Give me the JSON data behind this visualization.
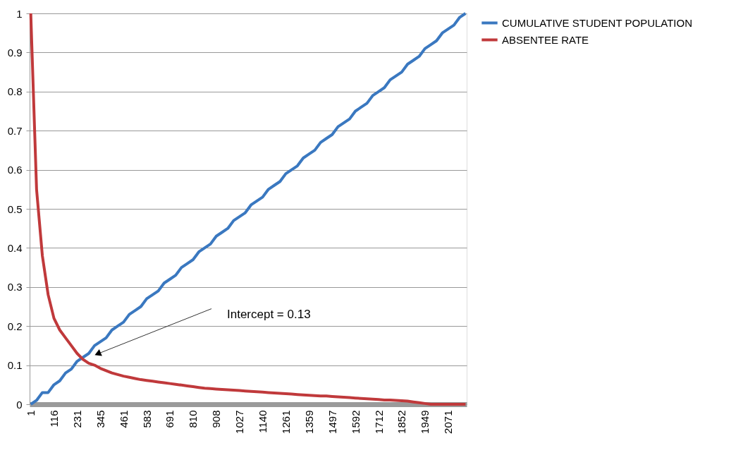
{
  "chart_data": {
    "type": "line",
    "categories": [
      "1",
      null,
      null,
      null,
      "116",
      null,
      null,
      null,
      "231",
      null,
      null,
      null,
      "345",
      null,
      null,
      null,
      "461",
      null,
      null,
      null,
      "583",
      null,
      null,
      null,
      "691",
      null,
      null,
      null,
      "810",
      null,
      null,
      null,
      "908",
      null,
      null,
      null,
      "1027",
      null,
      null,
      null,
      "1140",
      null,
      null,
      null,
      "1261",
      null,
      null,
      null,
      "1359",
      null,
      null,
      null,
      "1497",
      null,
      null,
      null,
      "1592",
      null,
      null,
      null,
      "1712",
      null,
      null,
      null,
      "1852",
      null,
      null,
      null,
      "1949",
      null,
      null,
      null,
      "2071",
      null,
      null,
      null
    ],
    "series": [
      {
        "name": "CUMULATIVE STUDENT POPULATION",
        "color": "#3a78c0",
        "values": [
          0,
          0.01,
          0.03,
          0.03,
          0.05,
          0.06,
          0.08,
          0.09,
          0.11,
          0.12,
          0.13,
          0.15,
          0.16,
          0.17,
          0.19,
          0.2,
          0.21,
          0.23,
          0.24,
          0.25,
          0.27,
          0.28,
          0.29,
          0.31,
          0.32,
          0.33,
          0.35,
          0.36,
          0.37,
          0.39,
          0.4,
          0.41,
          0.43,
          0.44,
          0.45,
          0.47,
          0.48,
          0.49,
          0.51,
          0.52,
          0.53,
          0.55,
          0.56,
          0.57,
          0.59,
          0.6,
          0.61,
          0.63,
          0.64,
          0.65,
          0.67,
          0.68,
          0.69,
          0.71,
          0.72,
          0.73,
          0.75,
          0.76,
          0.77,
          0.79,
          0.8,
          0.81,
          0.83,
          0.84,
          0.85,
          0.87,
          0.88,
          0.89,
          0.91,
          0.92,
          0.93,
          0.95,
          0.96,
          0.97,
          0.99,
          1.0
        ]
      },
      {
        "name": "ABSENTEE RATE",
        "color": "#c0393b",
        "values": [
          1.0,
          0.55,
          0.38,
          0.28,
          0.22,
          0.19,
          0.17,
          0.15,
          0.13,
          0.115,
          0.105,
          0.1,
          0.092,
          0.086,
          0.08,
          0.076,
          0.072,
          0.069,
          0.066,
          0.063,
          0.061,
          0.059,
          0.057,
          0.055,
          0.053,
          0.051,
          0.049,
          0.047,
          0.045,
          0.043,
          0.041,
          0.04,
          0.039,
          0.038,
          0.037,
          0.036,
          0.035,
          0.034,
          0.033,
          0.032,
          0.031,
          0.03,
          0.029,
          0.028,
          0.027,
          0.026,
          0.025,
          0.024,
          0.023,
          0.022,
          0.021,
          0.021,
          0.02,
          0.019,
          0.018,
          0.017,
          0.016,
          0.015,
          0.014,
          0.013,
          0.012,
          0.011,
          0.011,
          0.01,
          0.009,
          0.008,
          0.006,
          0.004,
          0.002,
          0,
          0,
          0,
          0,
          0,
          0,
          0
        ]
      }
    ],
    "ylim": [
      0,
      1
    ],
    "yticks": [
      0,
      0.1,
      0.2,
      0.3,
      0.4,
      0.5,
      0.6,
      0.7,
      0.8,
      0.9,
      1
    ],
    "grid": "y",
    "legend": "right",
    "marker": "none",
    "line_style": "solid",
    "annotations": [
      "Intercept = 0.13"
    ]
  }
}
